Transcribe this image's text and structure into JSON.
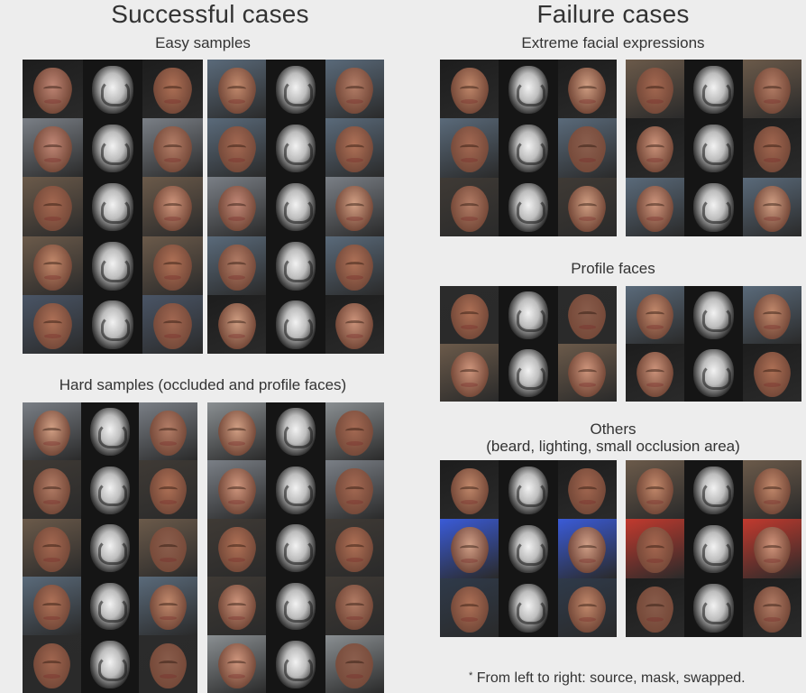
{
  "left": {
    "heading": "Successful cases",
    "easy_label": "Easy samples",
    "hard_label": "Hard samples (occluded and profile faces)"
  },
  "right": {
    "heading": "Failure cases",
    "extreme_label": "Extreme facial expressions",
    "profile_label": "Profile faces",
    "others_label": "Others",
    "others_sublabel": "(beard, lighting, small occlusion area)"
  },
  "footnote": {
    "marker": "*",
    "text": "From left to right: source, mask, swapped."
  },
  "image_theme": {
    "skin_tones": [
      "#c98d6e",
      "#b57458",
      "#d9a487",
      "#a86a52",
      "#c78a78",
      "#8e5f4d",
      "#d69a80",
      "#b98068"
    ],
    "backgrounds": [
      "#2b2b2b",
      "#5a6a7a",
      "#3f3a35",
      "#7a7f86",
      "#1d1d1d",
      "#6b5a4a",
      "#4a5566",
      "#2f3a4a",
      "#8a8f92"
    ],
    "blue_bg": "#3a5bd8",
    "red_bg": "#c23a2e"
  }
}
